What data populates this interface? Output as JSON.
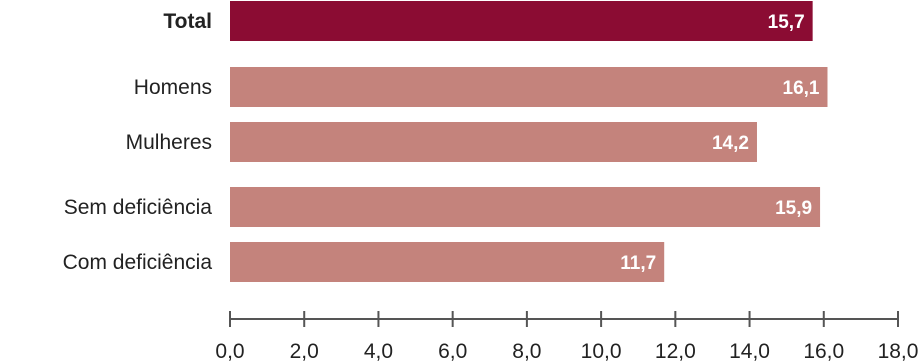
{
  "chart_data": {
    "type": "bar",
    "orientation": "horizontal",
    "categories": [
      "Total",
      "Homens",
      "Mulheres",
      "Sem deficiência",
      "Com deficiência"
    ],
    "values": [
      15.7,
      16.1,
      14.2,
      15.9,
      11.7
    ],
    "value_labels": [
      "15,7",
      "16,1",
      "14,2",
      "15,9",
      "11,7"
    ],
    "bold_categories": [
      "Total"
    ],
    "colors": {
      "highlight": "#8b0c33",
      "default": "#c4837c",
      "axis": "#555555"
    },
    "xlim": [
      0,
      18
    ],
    "x_ticks": [
      0,
      2,
      4,
      6,
      8,
      10,
      12,
      14,
      16,
      18
    ],
    "x_tick_labels": [
      "0,0",
      "2,0",
      "4,0",
      "6,0",
      "8,0",
      "10,0",
      "12,0",
      "14,0",
      "16,0",
      "18,0"
    ],
    "grid": false,
    "legend": "none",
    "title": "",
    "xlabel": "",
    "ylabel": ""
  }
}
